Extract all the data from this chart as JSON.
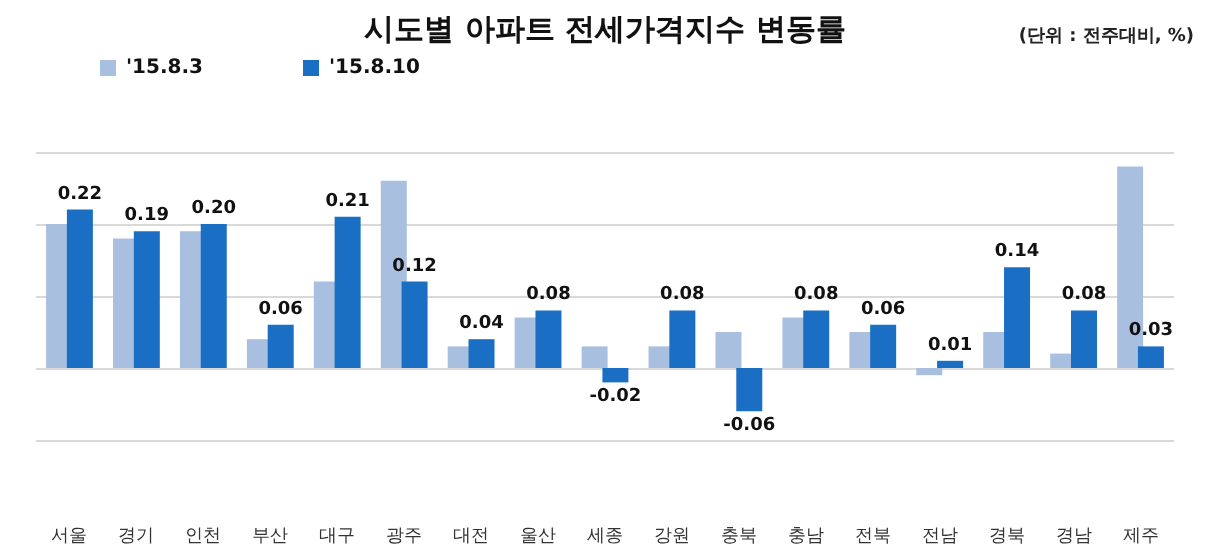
{
  "chart_data": {
    "type": "bar",
    "title": "시도별 아파트 전세가격지수 변동률",
    "annotations": [
      "(단위 : 전주대비, %)"
    ],
    "categories": [
      "서울",
      "경기",
      "인천",
      "부산",
      "대구",
      "광주",
      "대전",
      "울산",
      "세종",
      "강원",
      "충북",
      "충남",
      "전북",
      "전남",
      "경북",
      "경남",
      "제주"
    ],
    "series": [
      {
        "name": "'15.8.3",
        "color": "#a9bfdf",
        "values": [
          0.2,
          0.18,
          0.19,
          0.04,
          0.12,
          0.26,
          0.03,
          0.07,
          0.03,
          0.03,
          0.05,
          0.07,
          0.05,
          -0.01,
          0.05,
          0.02,
          0.28
        ]
      },
      {
        "name": "'15.8.10",
        "color": "#1a6fc4",
        "values": [
          0.22,
          0.19,
          0.2,
          0.06,
          0.21,
          0.12,
          0.04,
          0.08,
          -0.02,
          0.08,
          -0.06,
          0.08,
          0.06,
          0.01,
          0.14,
          0.08,
          0.03
        ],
        "value_labels": [
          "0.22",
          "0.19",
          "0.20",
          "0.06",
          "0.21",
          "0.12",
          "0.04",
          "0.08",
          "-0.02",
          "0.08",
          "-0.06",
          "0.08",
          "0.06",
          "0.01",
          "0.14",
          "0.08",
          "0.03"
        ]
      }
    ],
    "ylim": [
      -0.1,
      0.3
    ],
    "yticks": [
      {
        "value": -0.1,
        "label": null
      },
      {
        "value": 0,
        "label": null
      },
      {
        "value": 0.1,
        "label": null
      },
      {
        "value": 0.2,
        "label": null
      },
      {
        "value": 0.3,
        "label": null
      }
    ],
    "tick_labels": "x",
    "grid": "y",
    "legend": "top left"
  }
}
